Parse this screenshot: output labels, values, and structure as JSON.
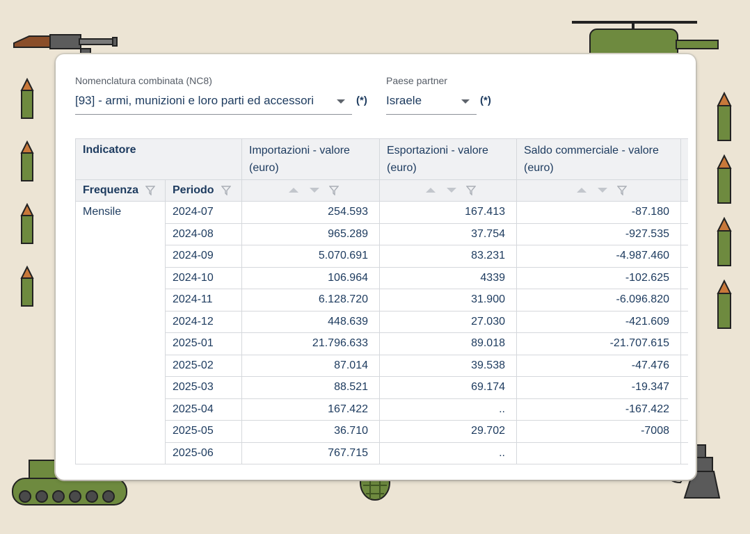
{
  "filters": {
    "nc8": {
      "label": "Nomenclatura combinata (NC8)",
      "value": "[93] - armi, munizioni e loro parti ed accessori",
      "required_mark": "(*)"
    },
    "partner": {
      "label": "Paese partner",
      "value": "Israele",
      "required_mark": "(*)"
    }
  },
  "table": {
    "indicator_header": "Indicatore",
    "frequency_header": "Frequenza",
    "period_header": "Periodo",
    "columns": [
      "Importazioni - valore (euro)",
      "Esportazioni - valore (euro)",
      "Saldo commerciale - valore (euro)"
    ],
    "frequency_value": "Mensile",
    "rows": [
      {
        "period": "2024-07",
        "imp": "254.593",
        "exp": "167.413",
        "bal": "-87.180"
      },
      {
        "period": "2024-08",
        "imp": "965.289",
        "exp": "37.754",
        "bal": "-927.535"
      },
      {
        "period": "2024-09",
        "imp": "5.070.691",
        "exp": "83.231",
        "bal": "-4.987.460"
      },
      {
        "period": "2024-10",
        "imp": "106.964",
        "exp": "4339",
        "bal": "-102.625"
      },
      {
        "period": "2024-11",
        "imp": "6.128.720",
        "exp": "31.900",
        "bal": "-6.096.820"
      },
      {
        "period": "2024-12",
        "imp": "448.639",
        "exp": "27.030",
        "bal": "-421.609"
      },
      {
        "period": "2025-01",
        "imp": "21.796.633",
        "exp": "89.018",
        "bal": "-21.707.615"
      },
      {
        "period": "2025-02",
        "imp": "87.014",
        "exp": "39.538",
        "bal": "-47.476"
      },
      {
        "period": "2025-03",
        "imp": "88.521",
        "exp": "69.174",
        "bal": "-19.347"
      },
      {
        "period": "2025-04",
        "imp": "167.422",
        "exp": "..",
        "bal": "-167.422"
      },
      {
        "period": "2025-05",
        "imp": "36.710",
        "exp": "29.702",
        "bal": "-7008"
      },
      {
        "period": "2025-06",
        "imp": "767.715",
        "exp": "..",
        "bal": ""
      }
    ]
  },
  "icons": {
    "funnel": "filter-funnel-icon",
    "sort_up": "sort-ascending-icon",
    "sort_down": "sort-descending-icon",
    "dropdown": "chevron-down-icon"
  },
  "colors": {
    "background": "#ece4d4",
    "text": "#1c3a5e",
    "military_green": "#6e8a3f",
    "gray_metal": "#5a5a5a"
  }
}
